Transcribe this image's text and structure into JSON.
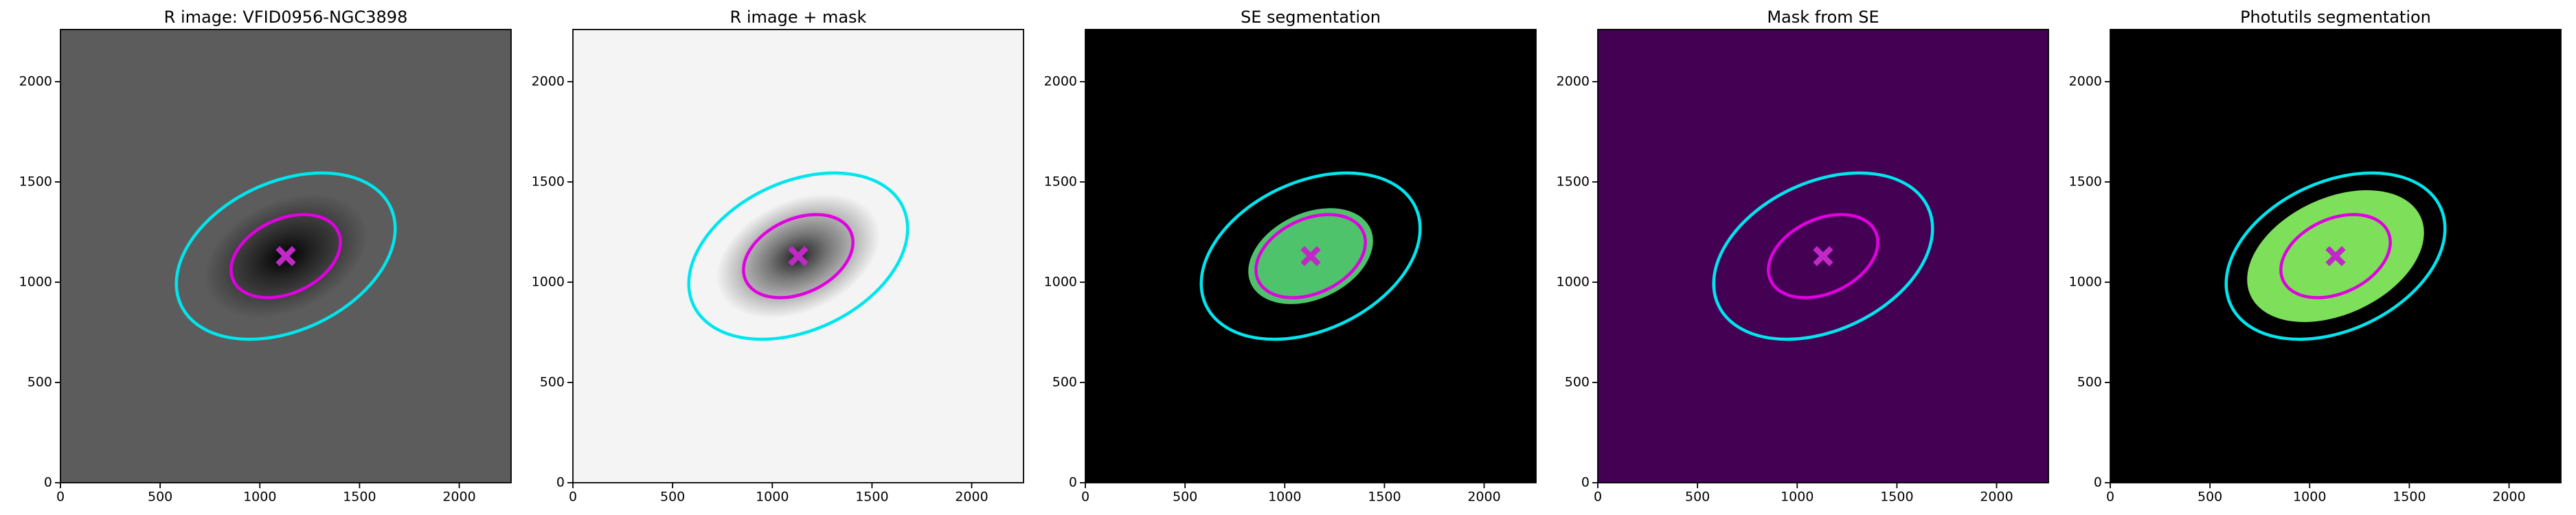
{
  "chart_data": [
    {
      "type": "image",
      "title": "R image: VFID0956-NGC3898",
      "xlim": [
        0,
        2260
      ],
      "ylim": [
        0,
        2260
      ],
      "xticks": [
        0,
        500,
        1000,
        1500,
        2000
      ],
      "yticks": [
        0,
        500,
        1000,
        1500,
        2000
      ],
      "background": "#5c5c5c",
      "glow": "#000000",
      "ellipses": [
        {
          "x": 1130,
          "y": 1130,
          "a": 580,
          "b": 370,
          "angle": 25,
          "color": "#00e5ee"
        },
        {
          "x": 1130,
          "y": 1130,
          "a": 290,
          "b": 185,
          "angle": 25,
          "color": "#e000e0"
        }
      ],
      "center": {
        "x": 1130,
        "y": 1130,
        "color": "#c028c8"
      }
    },
    {
      "type": "image",
      "title": "R image + mask",
      "xlim": [
        0,
        2260
      ],
      "ylim": [
        0,
        2260
      ],
      "xticks": [
        0,
        500,
        1000,
        1500,
        2000
      ],
      "yticks": [
        0,
        500,
        1000,
        1500,
        2000
      ],
      "background": "#f4f4f4",
      "glow": "#202020",
      "ellipses": [
        {
          "x": 1130,
          "y": 1130,
          "a": 580,
          "b": 370,
          "angle": 25,
          "color": "#00e5ee"
        },
        {
          "x": 1130,
          "y": 1130,
          "a": 290,
          "b": 185,
          "angle": 25,
          "color": "#e000e0"
        }
      ],
      "center": {
        "x": 1130,
        "y": 1130,
        "color": "#c028c8"
      }
    },
    {
      "type": "image",
      "title": "SE segmentation",
      "xlim": [
        0,
        2260
      ],
      "ylim": [
        0,
        2260
      ],
      "xticks": [
        0,
        500,
        1000,
        1500,
        2000
      ],
      "yticks": [
        0,
        500,
        1000,
        1500,
        2000
      ],
      "background": "#000000",
      "segments": [
        {
          "x": 1130,
          "y": 1130,
          "a": 330,
          "b": 215,
          "angle": 25,
          "color": "#4ec36b"
        }
      ],
      "ellipses": [
        {
          "x": 1130,
          "y": 1130,
          "a": 580,
          "b": 370,
          "angle": 25,
          "color": "#00e5ee"
        },
        {
          "x": 1130,
          "y": 1130,
          "a": 290,
          "b": 185,
          "angle": 25,
          "color": "#e000e0"
        }
      ],
      "center": {
        "x": 1130,
        "y": 1130,
        "color": "#c028c8"
      }
    },
    {
      "type": "image",
      "title": "Mask from SE",
      "xlim": [
        0,
        2260
      ],
      "ylim": [
        0,
        2260
      ],
      "xticks": [
        0,
        500,
        1000,
        1500,
        2000
      ],
      "yticks": [
        0,
        500,
        1000,
        1500,
        2000
      ],
      "background": "#440154",
      "ellipses": [
        {
          "x": 1130,
          "y": 1130,
          "a": 580,
          "b": 370,
          "angle": 25,
          "color": "#00e5ee"
        },
        {
          "x": 1130,
          "y": 1130,
          "a": 290,
          "b": 185,
          "angle": 25,
          "color": "#e000e0"
        }
      ],
      "center": {
        "x": 1130,
        "y": 1130,
        "color": "#c028c8"
      }
    },
    {
      "type": "image",
      "title": "Photutils segmentation",
      "xlim": [
        0,
        2260
      ],
      "ylim": [
        0,
        2260
      ],
      "xticks": [
        0,
        500,
        1000,
        1500,
        2000
      ],
      "yticks": [
        0,
        500,
        1000,
        1500,
        2000
      ],
      "background": "#000000",
      "segments": [
        {
          "x": 1130,
          "y": 1130,
          "a": 470,
          "b": 290,
          "angle": 25,
          "color": "#7ee05a"
        }
      ],
      "ellipses": [
        {
          "x": 1130,
          "y": 1130,
          "a": 580,
          "b": 370,
          "angle": 25,
          "color": "#00e5ee"
        },
        {
          "x": 1130,
          "y": 1130,
          "a": 290,
          "b": 185,
          "angle": 25,
          "color": "#e000e0"
        }
      ],
      "center": {
        "x": 1130,
        "y": 1130,
        "color": "#c028c8"
      }
    }
  ]
}
